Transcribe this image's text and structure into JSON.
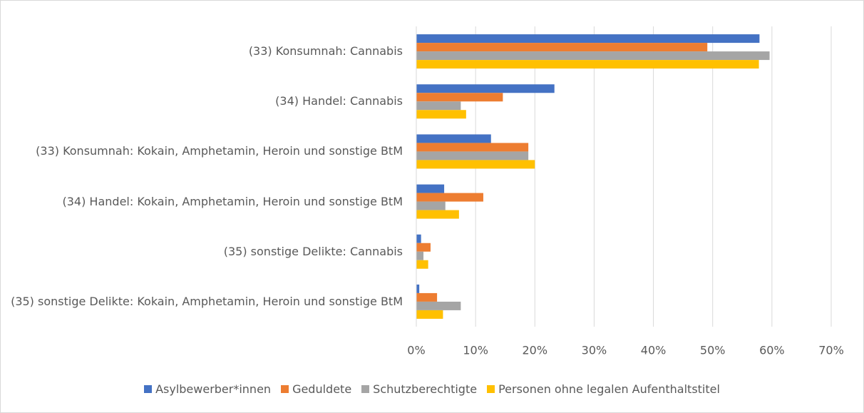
{
  "chart_data": {
    "type": "bar",
    "orientation": "horizontal",
    "categories": [
      "(33) Konsumnah: Cannabis",
      "(34) Handel: Cannabis",
      "(33) Konsumnah: Kokain, Amphetamin, Heroin und sonstige BtM",
      "(34) Handel: Kokain, Amphetamin, Heroin und sonstige BtM",
      "(35) sonstige Delikte: Cannabis",
      "(35) sonstige Delikte: Kokain, Amphetamin, Heroin und sonstige BtM"
    ],
    "series": [
      {
        "name": "Asylbewerber*innen",
        "color": "#4472c4",
        "values": [
          57.9,
          23.3,
          12.6,
          4.7,
          0.8,
          0.5
        ]
      },
      {
        "name": "Geduldete",
        "color": "#ed7d31",
        "values": [
          49.1,
          14.6,
          18.9,
          11.3,
          2.4,
          3.5
        ]
      },
      {
        "name": "Schutzberechtigte",
        "color": "#a5a5a5",
        "values": [
          59.6,
          7.5,
          18.9,
          4.9,
          1.2,
          7.5
        ]
      },
      {
        "name": "Personen ohne legalen Aufenthaltstitel",
        "color": "#ffc000",
        "values": [
          57.8,
          8.4,
          20.0,
          7.2,
          2.0,
          4.5
        ]
      }
    ],
    "xlim": [
      0,
      70
    ],
    "xticks": [
      {
        "value": 0,
        "label": "0%"
      },
      {
        "value": 10,
        "label": "10%"
      },
      {
        "value": 20,
        "label": "20%"
      },
      {
        "value": 30,
        "label": "30%"
      },
      {
        "value": 40,
        "label": "40%"
      },
      {
        "value": 50,
        "label": "50%"
      },
      {
        "value": 60,
        "label": "60%"
      },
      {
        "value": 70,
        "label": "70%"
      }
    ],
    "grid": true,
    "legend": "bottom"
  }
}
